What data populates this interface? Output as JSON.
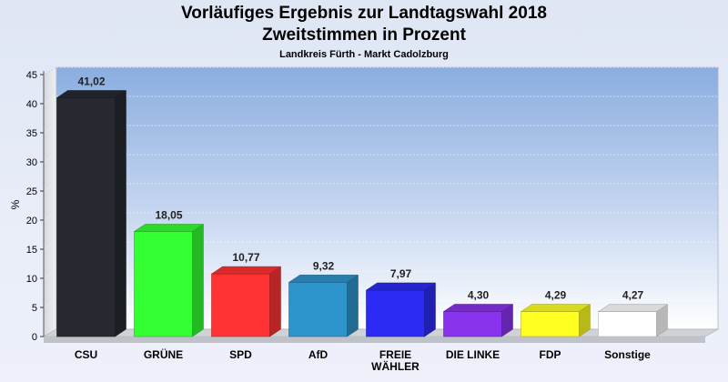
{
  "chart_data": {
    "type": "bar",
    "title": "Vorläufiges Ergebnis zur Landtagswahl 2018",
    "subtitle": "Zweitstimmen in Prozent",
    "subsubtitle": "Landkreis Fürth - Markt Cadolzburg",
    "ylabel": "%",
    "ylim": [
      0,
      45
    ],
    "yticks": [
      0,
      5,
      10,
      15,
      20,
      25,
      30,
      35,
      40,
      45
    ],
    "grid": true,
    "categories": [
      "CSU",
      "GRÜNE",
      "SPD",
      "AfD",
      "FREIE WÄHLER",
      "DIE LINKE",
      "FDP",
      "Sonstige"
    ],
    "category_lines": [
      [
        "CSU"
      ],
      [
        "GRÜNE"
      ],
      [
        "SPD"
      ],
      [
        "AfD"
      ],
      [
        "FREIE",
        "WÄHLER"
      ],
      [
        "DIE LINKE"
      ],
      [
        "FDP"
      ],
      [
        "Sonstige"
      ]
    ],
    "values": [
      41.02,
      18.05,
      10.77,
      9.32,
      7.97,
      4.3,
      4.29,
      4.27
    ],
    "value_labels": [
      "41,02",
      "18,05",
      "10,77",
      "9,32",
      "7,97",
      "4,30",
      "4,29",
      "4,27"
    ],
    "colors": [
      "#262a30",
      "#33ff33",
      "#ff3333",
      "#2e94cc",
      "#2b2bf5",
      "#8a33ee",
      "#ffff22",
      "#ffffff"
    ]
  }
}
